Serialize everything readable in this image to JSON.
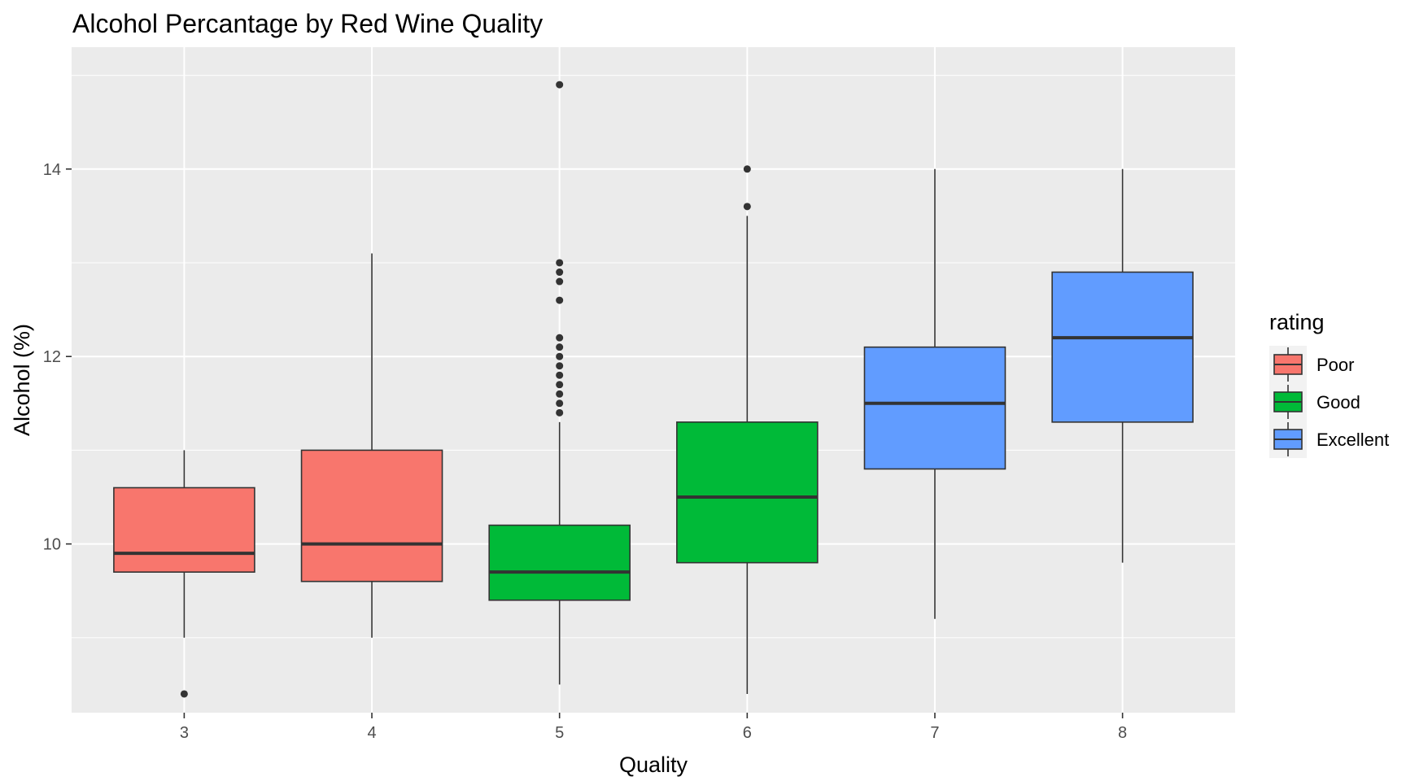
{
  "chart_data": {
    "type": "boxplot",
    "title": "Alcohol Percantage by Red Wine Quality",
    "xlabel": "Quality",
    "ylabel": "Alcohol (%)",
    "categories": [
      "3",
      "4",
      "5",
      "6",
      "7",
      "8"
    ],
    "ylim": [
      8.2,
      15.3
    ],
    "yticks": [
      10,
      12,
      14
    ],
    "grid": true,
    "legend": {
      "title": "rating",
      "position": "right",
      "items": [
        {
          "label": "Poor",
          "color": "#F8766D"
        },
        {
          "label": "Good",
          "color": "#00BA38"
        },
        {
          "label": "Excellent",
          "color": "#619CFF"
        }
      ]
    },
    "boxes": [
      {
        "x": "3",
        "rating": "Poor",
        "min": 9.0,
        "q1": 9.7,
        "median": 9.9,
        "q3": 10.6,
        "max": 11.0,
        "outliers": [
          8.4
        ]
      },
      {
        "x": "4",
        "rating": "Poor",
        "min": 9.0,
        "q1": 9.6,
        "median": 10.0,
        "q3": 11.0,
        "max": 13.1,
        "outliers": []
      },
      {
        "x": "5",
        "rating": "Good",
        "min": 8.5,
        "q1": 9.4,
        "median": 9.7,
        "q3": 10.2,
        "max": 11.3,
        "outliers": [
          11.4,
          11.5,
          11.6,
          11.7,
          11.8,
          11.9,
          12.0,
          12.1,
          12.2,
          12.6,
          12.8,
          12.9,
          13.0,
          14.9
        ]
      },
      {
        "x": "6",
        "rating": "Good",
        "min": 8.4,
        "q1": 9.8,
        "median": 10.5,
        "q3": 11.3,
        "max": 13.5,
        "outliers": [
          13.6,
          14.0
        ]
      },
      {
        "x": "7",
        "rating": "Excellent",
        "min": 9.2,
        "q1": 10.8,
        "median": 11.5,
        "q3": 12.1,
        "max": 14.0,
        "outliers": []
      },
      {
        "x": "8",
        "rating": "Excellent",
        "min": 9.8,
        "q1": 11.3,
        "median": 12.2,
        "q3": 12.9,
        "max": 14.0,
        "outliers": []
      }
    ]
  }
}
